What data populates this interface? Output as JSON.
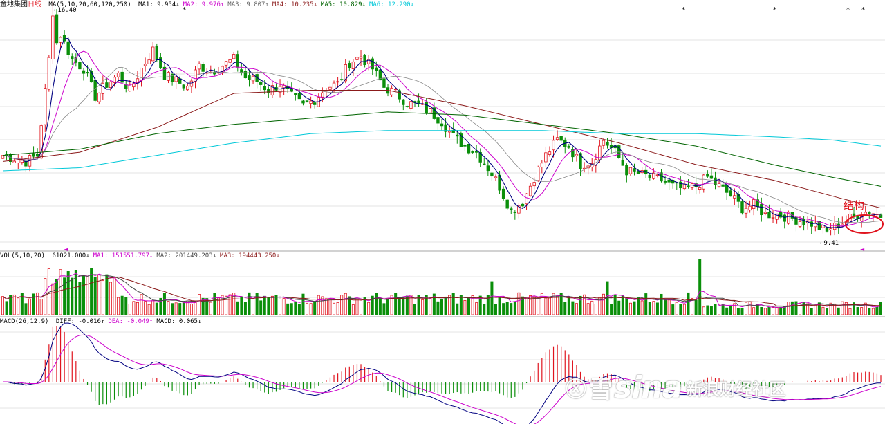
{
  "header": {
    "stock_name": "金地集团",
    "period": "日线",
    "ma_label": "MA(5,10,20,60,120,250)",
    "ma_items": [
      {
        "text": "MA1: 9.954↓",
        "color": "#000000"
      },
      {
        "text": "MA2: 9.976↑",
        "color": "#cc00cc"
      },
      {
        "text": "MA3: 9.807↑",
        "color": "#666666"
      },
      {
        "text": "MA4: 10.235↓",
        "color": "#8b1a1a"
      },
      {
        "text": "MA5: 10.829↓",
        "color": "#006400"
      },
      {
        "text": "MA6: 12.290↓",
        "color": "#00c8d8"
      }
    ]
  },
  "vol_header": {
    "label": "VOL(5,10,20)",
    "items": [
      {
        "text": "61021.000↓",
        "color": "#000000"
      },
      {
        "text": "MA1: 151551.797↓",
        "color": "#cc00cc"
      },
      {
        "text": "MA2: 201449.203↓",
        "color": "#444444"
      },
      {
        "text": "MA3: 194443.250↓",
        "color": "#8b1a1a"
      }
    ]
  },
  "macd_header": {
    "label": "MACD(26,12,9)",
    "items": [
      {
        "text": "DIFF: -0.016↑",
        "color": "#000000"
      },
      {
        "text": "DEA: -0.049↑",
        "color": "#cc00cc"
      },
      {
        "text": "MACD: 0.065↓",
        "color": "#000000"
      }
    ]
  },
  "annotations": {
    "high_label": "16.40",
    "low_label": "9.41",
    "structure_label": "结构",
    "top_markers": [
      "*",
      "*",
      "*",
      "*",
      "*"
    ],
    "left_arrow": "◄"
  },
  "watermark": {
    "logo": "ⓧ",
    "xue": "雪",
    "sina": "sina",
    "subtitle": "新浪财经社区"
  },
  "colors": {
    "up": "#e0141e",
    "down": "#0a8f0a",
    "ma1": "#000080",
    "ma2": "#cc00cc",
    "ma3": "#888888",
    "ma4": "#8b1a1a",
    "ma5": "#006400",
    "ma6": "#00c8d8",
    "grid": "#c8c8c8",
    "circle": "#e0141e"
  },
  "chart_data": {
    "type": "candlestick",
    "ylim": [
      9.1,
      16.6
    ],
    "anchors": [
      [
        0,
        11.9
      ],
      [
        3,
        11.8
      ],
      [
        6,
        11.7
      ],
      [
        9,
        11.9
      ],
      [
        12,
        15.0
      ],
      [
        15,
        15.8
      ],
      [
        18,
        15.0
      ],
      [
        21,
        14.7
      ],
      [
        24,
        13.8
      ],
      [
        27,
        14.2
      ],
      [
        30,
        14.5
      ],
      [
        33,
        14.0
      ],
      [
        36,
        14.7
      ],
      [
        39,
        15.3
      ],
      [
        42,
        14.5
      ],
      [
        45,
        14.3
      ],
      [
        48,
        14.1
      ],
      [
        51,
        14.8
      ],
      [
        54,
        14.6
      ],
      [
        57,
        14.8
      ],
      [
        60,
        15.0
      ],
      [
        63,
        14.4
      ],
      [
        66,
        14.3
      ],
      [
        69,
        14.0
      ],
      [
        72,
        14.2
      ],
      [
        75,
        13.8
      ],
      [
        78,
        13.5
      ],
      [
        81,
        13.7
      ],
      [
        84,
        14.1
      ],
      [
        87,
        14.2
      ],
      [
        90,
        14.9
      ],
      [
        93,
        15.1
      ],
      [
        96,
        14.7
      ],
      [
        99,
        14.1
      ],
      [
        102,
        13.9
      ],
      [
        105,
        13.6
      ],
      [
        108,
        13.5
      ],
      [
        111,
        13.3
      ],
      [
        114,
        13.0
      ],
      [
        117,
        12.5
      ],
      [
        120,
        12.2
      ],
      [
        123,
        12.0
      ],
      [
        126,
        11.5
      ],
      [
        129,
        10.9
      ],
      [
        132,
        10.1
      ],
      [
        135,
        10.4
      ],
      [
        138,
        11.2
      ],
      [
        141,
        11.9
      ],
      [
        144,
        12.4
      ],
      [
        147,
        12.2
      ],
      [
        150,
        11.6
      ],
      [
        153,
        11.7
      ],
      [
        156,
        12.4
      ],
      [
        159,
        12.0
      ],
      [
        162,
        11.4
      ],
      [
        165,
        11.3
      ],
      [
        168,
        11.2
      ],
      [
        171,
        11.1
      ],
      [
        174,
        10.9
      ],
      [
        177,
        10.8
      ],
      [
        180,
        10.9
      ],
      [
        183,
        11.2
      ],
      [
        186,
        10.9
      ],
      [
        189,
        10.6
      ],
      [
        192,
        10.2
      ],
      [
        195,
        10.3
      ],
      [
        198,
        10.0
      ],
      [
        201,
        10.0
      ],
      [
        204,
        9.9
      ],
      [
        207,
        9.8
      ],
      [
        210,
        9.7
      ],
      [
        213,
        9.5
      ],
      [
        216,
        9.6
      ],
      [
        219,
        9.8
      ],
      [
        222,
        10.0
      ],
      [
        225,
        10.1
      ],
      [
        228,
        9.95
      ]
    ],
    "ma_anchors": {
      "ma4": [
        [
          0,
          11.7
        ],
        [
          20,
          12.0
        ],
        [
          40,
          12.8
        ],
        [
          60,
          13.9
        ],
        [
          80,
          14.0
        ],
        [
          100,
          14.0
        ],
        [
          120,
          13.5
        ],
        [
          140,
          12.9
        ],
        [
          160,
          12.3
        ],
        [
          180,
          11.6
        ],
        [
          200,
          11.1
        ],
        [
          218,
          10.5
        ],
        [
          228,
          10.2
        ]
      ],
      "ma5": [
        [
          0,
          11.9
        ],
        [
          20,
          12.1
        ],
        [
          40,
          12.6
        ],
        [
          60,
          12.9
        ],
        [
          80,
          13.1
        ],
        [
          100,
          13.3
        ],
        [
          120,
          13.2
        ],
        [
          140,
          12.9
        ],
        [
          160,
          12.6
        ],
        [
          180,
          12.2
        ],
        [
          200,
          11.6
        ],
        [
          215,
          11.2
        ],
        [
          228,
          10.9
        ]
      ],
      "ma6": [
        [
          0,
          11.4
        ],
        [
          20,
          11.5
        ],
        [
          40,
          11.9
        ],
        [
          60,
          12.3
        ],
        [
          80,
          12.6
        ],
        [
          100,
          12.7
        ],
        [
          120,
          12.7
        ],
        [
          140,
          12.7
        ],
        [
          160,
          12.6
        ],
        [
          180,
          12.6
        ],
        [
          200,
          12.5
        ],
        [
          215,
          12.4
        ],
        [
          228,
          12.2
        ]
      ]
    },
    "count": 229
  }
}
